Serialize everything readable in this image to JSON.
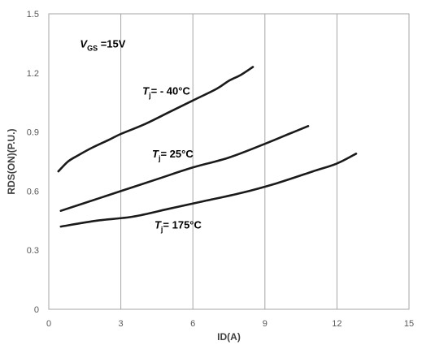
{
  "chart_data": {
    "type": "line",
    "xlabel": "ID(A)",
    "ylabel": "RDS(ON)(P.U.)",
    "xlim": [
      0,
      15
    ],
    "ylim": [
      0,
      1.5
    ],
    "x_ticks": [
      0,
      3,
      6,
      9,
      12,
      15
    ],
    "y_ticks": [
      0,
      0.3,
      0.6,
      0.9,
      1.2,
      1.5
    ],
    "x_tick_labels": [
      "0",
      "3",
      "6",
      "9",
      "12",
      "15"
    ],
    "y_tick_labels": [
      "0",
      "0.3",
      "0.6",
      "0.9",
      "1.2",
      "1.5"
    ],
    "grid": "vertical",
    "series": [
      {
        "x": [
          0.4,
          0.8,
          1.2,
          1.8,
          2.5,
          3.0,
          4.0,
          5.0,
          6.0,
          7.0,
          7.5,
          8.0,
          8.5
        ],
        "values": [
          0.7,
          0.75,
          0.78,
          0.82,
          0.86,
          0.89,
          0.94,
          1.0,
          1.06,
          1.12,
          1.16,
          1.19,
          1.23
        ]
      },
      {
        "x": [
          0.5,
          1.5,
          3.0,
          4.5,
          6.0,
          7.5,
          9.0,
          10.0,
          10.8
        ],
        "values": [
          0.5,
          0.54,
          0.6,
          0.66,
          0.72,
          0.77,
          0.84,
          0.89,
          0.93
        ]
      },
      {
        "x": [
          0.5,
          2.0,
          3.5,
          5.0,
          6.5,
          8.0,
          9.5,
          11.0,
          12.0,
          12.8
        ],
        "values": [
          0.42,
          0.45,
          0.47,
          0.51,
          0.55,
          0.59,
          0.64,
          0.7,
          0.74,
          0.79
        ]
      }
    ],
    "annotations": [
      {
        "italic": "V",
        "sub": "GS",
        "rest": " =15V",
        "at": [
          1.3,
          1.33
        ]
      },
      {
        "italic": "T",
        "sub": "j",
        "rest": "= - 40°C",
        "at": [
          3.9,
          1.09
        ]
      },
      {
        "italic": "T",
        "sub": "j",
        "rest": "= 25°C",
        "at": [
          4.3,
          0.77
        ]
      },
      {
        "italic": "T",
        "sub": "j",
        "rest": "= 175°C",
        "at": [
          4.4,
          0.41
        ]
      }
    ]
  }
}
